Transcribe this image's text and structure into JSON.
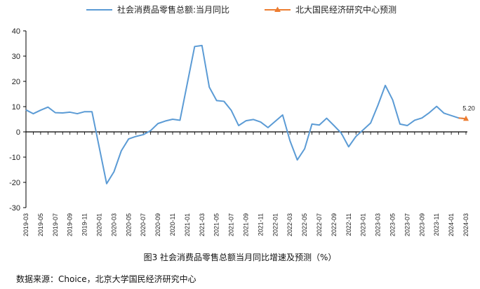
{
  "caption": "图3 社会消费品零售总额当月同比增速及预测（%）",
  "source": "数据来源：Choice，北京大学国民经济研究中心",
  "colors": {
    "actual": "#5b9bd5",
    "forecast": "#ed7d31",
    "axis": "#000000"
  },
  "chart_data": {
    "type": "line",
    "ylim": [
      -30,
      40
    ],
    "yticks": [
      -30,
      -20,
      -10,
      0,
      10,
      20,
      30,
      40
    ],
    "grid": false,
    "legend_placement": "top",
    "x_tick_labels": [
      "2019-03",
      "2019-05",
      "2019-07",
      "2019-09",
      "2019-11",
      "2020-01",
      "2020-03",
      "2020-05",
      "2020-07",
      "2020-09",
      "2020-11",
      "2021-01",
      "2021-03",
      "2021-05",
      "2021-07",
      "2021-09",
      "2021-11",
      "2022-01",
      "2022-03",
      "2022-05",
      "2022-07",
      "2022-09",
      "2022-11",
      "2023-01",
      "2023-03",
      "2023-05",
      "2023-07",
      "2023-09",
      "2023-11",
      "2024-01",
      "2024-03"
    ],
    "series": [
      {
        "name": "社会消费品零售总额:当月同比",
        "points": [
          [
            "2019-03",
            8.7
          ],
          [
            "2019-04",
            7.2
          ],
          [
            "2019-05",
            8.6
          ],
          [
            "2019-06",
            9.8
          ],
          [
            "2019-07",
            7.6
          ],
          [
            "2019-08",
            7.5
          ],
          [
            "2019-09",
            7.8
          ],
          [
            "2019-10",
            7.2
          ],
          [
            "2019-11",
            8.0
          ],
          [
            "2019-12",
            8.0
          ],
          [
            "2020-02",
            -20.5
          ],
          [
            "2020-03",
            -15.8
          ],
          [
            "2020-04",
            -7.5
          ],
          [
            "2020-05",
            -2.8
          ],
          [
            "2020-06",
            -1.8
          ],
          [
            "2020-07",
            -1.1
          ],
          [
            "2020-08",
            0.5
          ],
          [
            "2020-09",
            3.3
          ],
          [
            "2020-10",
            4.3
          ],
          [
            "2020-11",
            5.0
          ],
          [
            "2020-12",
            4.6
          ],
          [
            "2021-02",
            33.8
          ],
          [
            "2021-03",
            34.2
          ],
          [
            "2021-04",
            17.7
          ],
          [
            "2021-05",
            12.4
          ],
          [
            "2021-06",
            12.1
          ],
          [
            "2021-07",
            8.5
          ],
          [
            "2021-08",
            2.5
          ],
          [
            "2021-09",
            4.4
          ],
          [
            "2021-10",
            4.9
          ],
          [
            "2021-11",
            3.9
          ],
          [
            "2021-12",
            1.7
          ],
          [
            "2022-02",
            6.7
          ],
          [
            "2022-03",
            -3.5
          ],
          [
            "2022-04",
            -11.1
          ],
          [
            "2022-05",
            -6.7
          ],
          [
            "2022-06",
            3.1
          ],
          [
            "2022-07",
            2.7
          ],
          [
            "2022-08",
            5.4
          ],
          [
            "2022-09",
            2.5
          ],
          [
            "2022-10",
            -0.5
          ],
          [
            "2022-11",
            -5.9
          ],
          [
            "2022-12",
            -1.8
          ],
          [
            "2023-02",
            3.5
          ],
          [
            "2023-03",
            10.6
          ],
          [
            "2023-04",
            18.4
          ],
          [
            "2023-05",
            12.7
          ],
          [
            "2023-06",
            3.1
          ],
          [
            "2023-07",
            2.5
          ],
          [
            "2023-08",
            4.6
          ],
          [
            "2023-09",
            5.5
          ],
          [
            "2023-10",
            7.6
          ],
          [
            "2023-11",
            10.1
          ],
          [
            "2023-12",
            7.4
          ],
          [
            "2024-02",
            5.5
          ],
          [
            "2024-03",
            5.2
          ]
        ]
      },
      {
        "name": "北大国民经济研究中心预测",
        "points": [
          [
            "2024-02",
            5.5
          ],
          [
            "2024-03",
            5.2
          ]
        ],
        "data_labels": [
          {
            "x": "2024-03",
            "label": "5.20"
          }
        ]
      }
    ]
  }
}
